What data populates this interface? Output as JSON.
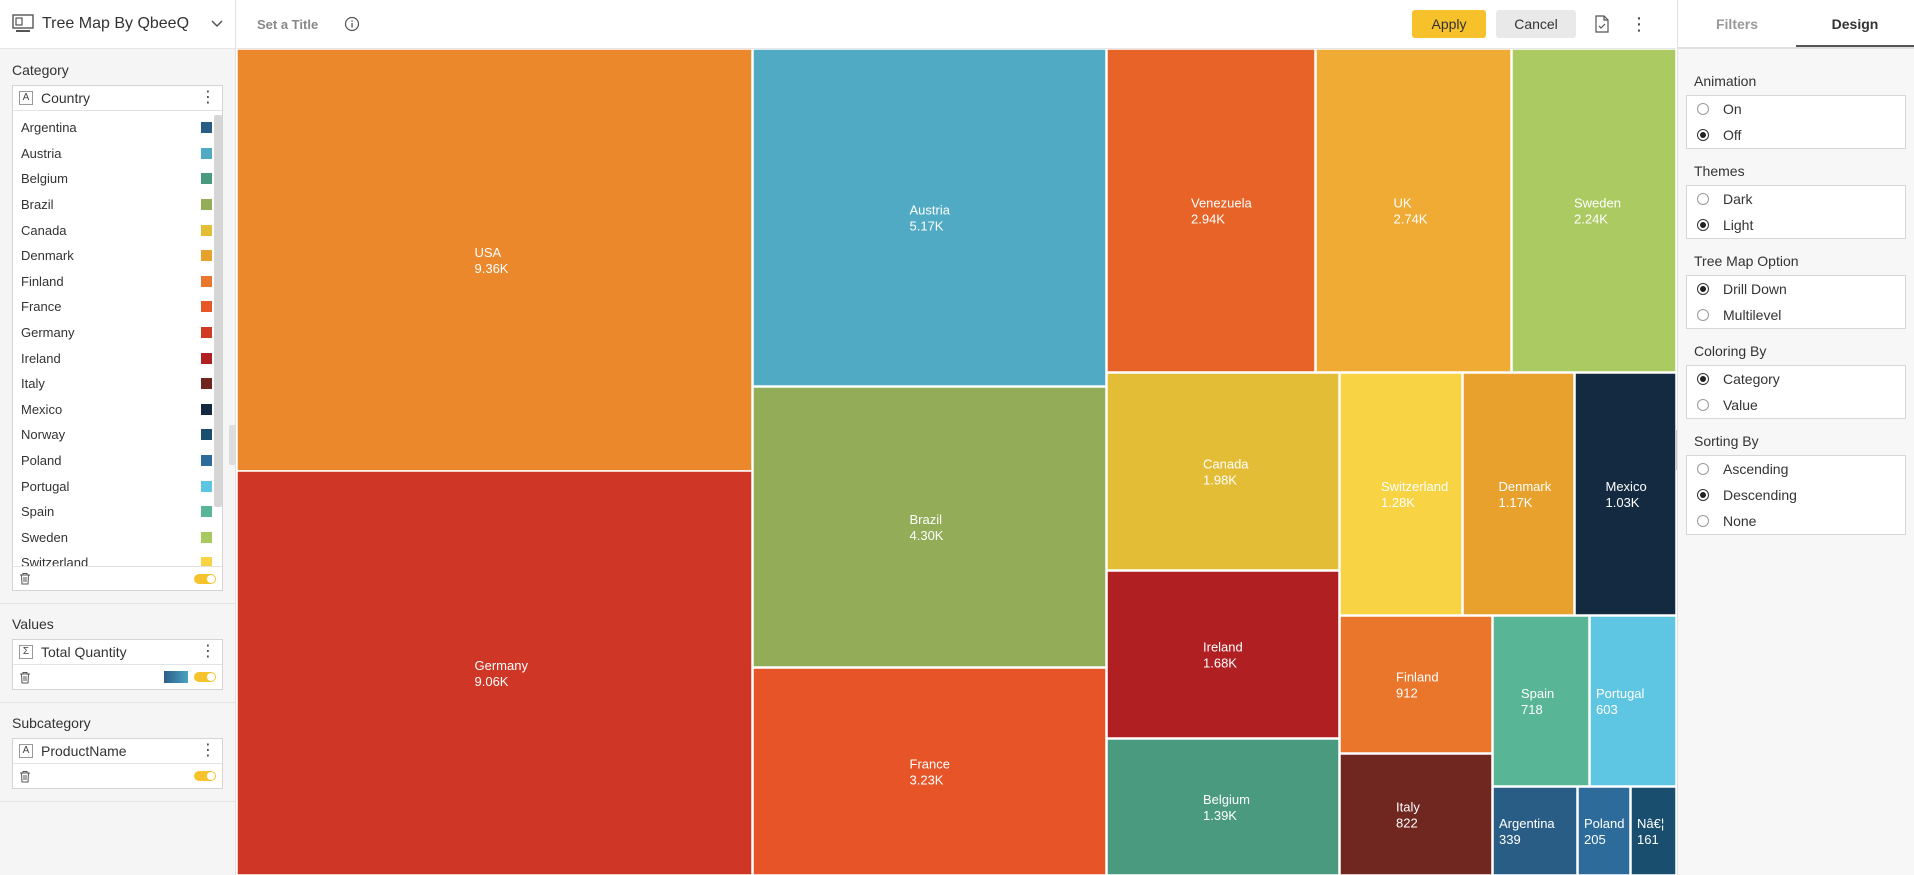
{
  "app": {
    "widget_title": "Tree Map By QbeeQ",
    "chart_title_placeholder": "Set a Title"
  },
  "toolbar": {
    "apply_label": "Apply",
    "cancel_label": "Cancel"
  },
  "left_panel": {
    "category": {
      "label": "Category",
      "field": "Country",
      "field_type_badge": "A",
      "items": [
        {
          "name": "Argentina",
          "color": "#2a5d85"
        },
        {
          "name": "Austria",
          "color": "#4faac4"
        },
        {
          "name": "Belgium",
          "color": "#4a9a80"
        },
        {
          "name": "Brazil",
          "color": "#93ad59"
        },
        {
          "name": "Canada",
          "color": "#e3bd36"
        },
        {
          "name": "Denmark",
          "color": "#e7a12e"
        },
        {
          "name": "Finland",
          "color": "#e9762b"
        },
        {
          "name": "France",
          "color": "#e65628"
        },
        {
          "name": "Germany",
          "color": "#d03a25"
        },
        {
          "name": "Ireland",
          "color": "#b01f22"
        },
        {
          "name": "Italy",
          "color": "#70261f"
        },
        {
          "name": "Mexico",
          "color": "#14293f"
        },
        {
          "name": "Norway",
          "color": "#1a4e6e"
        },
        {
          "name": "Poland",
          "color": "#2d6c9a"
        },
        {
          "name": "Portugal",
          "color": "#5dc4e1"
        },
        {
          "name": "Spain",
          "color": "#58b696"
        },
        {
          "name": "Sweden",
          "color": "#a8c95f"
        },
        {
          "name": "Switzerland",
          "color": "#f8d343"
        }
      ]
    },
    "values": {
      "label": "Values",
      "field": "Total Quantity",
      "field_type_badge": "Σ"
    },
    "subcategory": {
      "label": "Subcategory",
      "field": "ProductName",
      "field_type_badge": "A"
    }
  },
  "right_panel": {
    "tabs": [
      "Filters",
      "Design"
    ],
    "active_tab": "Design",
    "groups": [
      {
        "title": "Animation",
        "options": [
          {
            "label": "On",
            "selected": false
          },
          {
            "label": "Off",
            "selected": true
          }
        ]
      },
      {
        "title": "Themes",
        "options": [
          {
            "label": "Dark",
            "selected": false
          },
          {
            "label": "Light",
            "selected": true
          }
        ]
      },
      {
        "title": "Tree Map Option",
        "options": [
          {
            "label": "Drill Down",
            "selected": true
          },
          {
            "label": "Multilevel",
            "selected": false
          }
        ]
      },
      {
        "title": "Coloring By",
        "options": [
          {
            "label": "Category",
            "selected": true
          },
          {
            "label": "Value",
            "selected": false
          }
        ]
      },
      {
        "title": "Sorting By",
        "options": [
          {
            "label": "Ascending",
            "selected": false
          },
          {
            "label": "Descending",
            "selected": true
          },
          {
            "label": "None",
            "selected": false
          }
        ]
      }
    ]
  },
  "chart_data": {
    "type": "treemap",
    "tiles": [
      {
        "name": "USA",
        "value": 9360,
        "label": "9.36K",
        "color": "#ec882c"
      },
      {
        "name": "Germany",
        "value": 9060,
        "label": "9.06K",
        "color": "#d03625"
      },
      {
        "name": "Austria",
        "value": 5170,
        "label": "5.17K",
        "color": "#50aac4"
      },
      {
        "name": "Brazil",
        "value": 4300,
        "label": "4.30K",
        "color": "#93ac58"
      },
      {
        "name": "France",
        "value": 3230,
        "label": "3.23K",
        "color": "#e65428"
      },
      {
        "name": "Venezuela",
        "value": 2940,
        "label": "2.94K",
        "color": "#e76328"
      },
      {
        "name": "UK",
        "value": 2740,
        "label": "2.74K",
        "color": "#f0ab34"
      },
      {
        "name": "Sweden",
        "value": 2240,
        "label": "2.24K",
        "color": "#acca62"
      },
      {
        "name": "Canada",
        "value": 1980,
        "label": "1.98K",
        "color": "#e3bd36"
      },
      {
        "name": "Ireland",
        "value": 1680,
        "label": "1.68K",
        "color": "#b01f22"
      },
      {
        "name": "Belgium",
        "value": 1390,
        "label": "1.39K",
        "color": "#4a9a80"
      },
      {
        "name": "Switzerland",
        "value": 1280,
        "label": "1.28K",
        "color": "#f8d343"
      },
      {
        "name": "Denmark",
        "value": 1170,
        "label": "1.17K",
        "color": "#e8a12c"
      },
      {
        "name": "Mexico",
        "value": 1030,
        "label": "1.03K",
        "color": "#132a40"
      },
      {
        "name": "Finland",
        "value": 912,
        "label": "912",
        "color": "#e9762b"
      },
      {
        "name": "Italy",
        "value": 822,
        "label": "822",
        "color": "#70271f"
      },
      {
        "name": "Spain",
        "value": 718,
        "label": "718",
        "color": "#58b596"
      },
      {
        "name": "Portugal",
        "value": 603,
        "label": "603",
        "color": "#5ec5e2"
      },
      {
        "name": "Argentina",
        "value": 339,
        "label": "339",
        "color": "#2a5d85"
      },
      {
        "name": "Poland",
        "value": 205,
        "label": "205",
        "color": "#2d6c9a"
      },
      {
        "name": "Nâ€¦",
        "value": 161,
        "label": "161",
        "color": "#1a4e6e"
      }
    ]
  }
}
